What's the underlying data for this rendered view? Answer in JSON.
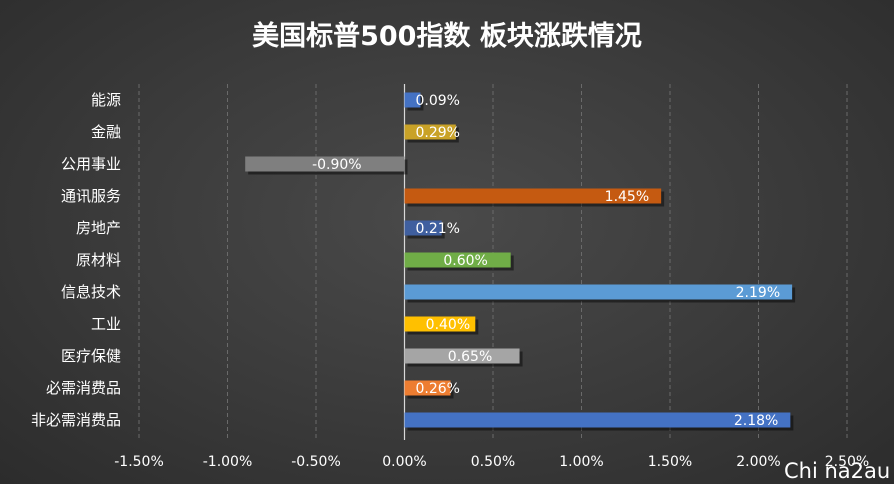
{
  "chart_data": {
    "type": "bar",
    "orientation": "horizontal",
    "title": "美国标普500指数 板块涨跌情况",
    "categories": [
      "能源",
      "金融",
      "公用事业",
      "通讯服务",
      "房地产",
      "原材料",
      "信息技术",
      "工业",
      "医疗保健",
      "必需消费品",
      "非必需消费品"
    ],
    "values": [
      0.09,
      0.29,
      -0.9,
      1.45,
      0.21,
      0.6,
      2.19,
      0.4,
      0.65,
      0.26,
      2.18
    ],
    "data_labels": [
      "0.09%",
      "0.29%",
      "-0.90%",
      "1.45%",
      "0.21%",
      "0.60%",
      "2.19%",
      "0.40%",
      "0.65%",
      "0.26%",
      "2.18%"
    ],
    "bar_colors": [
      "#4472c4",
      "#c9a227",
      "#7f7f7f",
      "#c55a11",
      "#3f5f9f",
      "#70ad47",
      "#5b9bd5",
      "#ffc000",
      "#a5a5a5",
      "#ed7d31",
      "#4472c4"
    ],
    "x_ticks": [
      -1.5,
      -1.0,
      -0.5,
      0.0,
      0.5,
      1.0,
      1.5,
      2.0,
      2.5
    ],
    "x_tick_labels": [
      "-1.50%",
      "-1.00%",
      "-0.50%",
      "0.00%",
      "0.50%",
      "1.00%",
      "1.50%",
      "2.00%",
      "2.50%"
    ],
    "xlim": [
      -1.5,
      2.5
    ],
    "grid": "vertical"
  },
  "watermark": "Chi na2au"
}
